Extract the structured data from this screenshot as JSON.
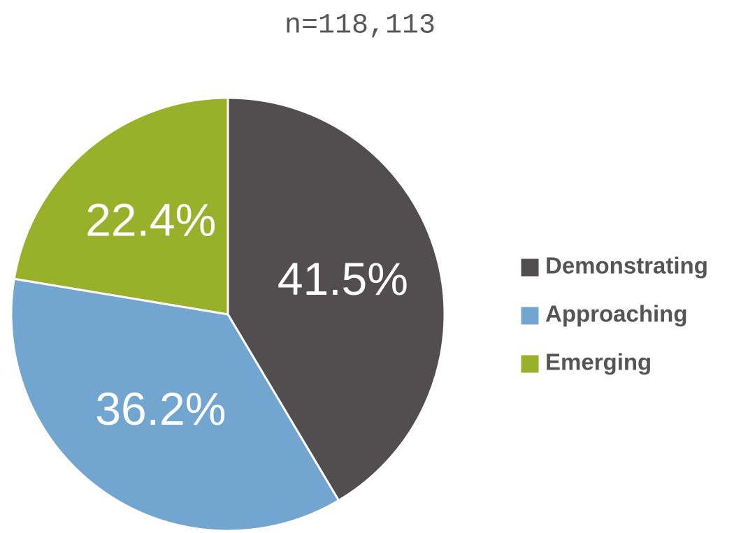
{
  "chart_data": {
    "type": "pie",
    "title": "n=118,113",
    "categories": [
      "Demonstrating",
      "Approaching",
      "Emerging"
    ],
    "values": [
      41.5,
      36.2,
      22.4
    ],
    "value_labels": [
      "41.5%",
      "36.2%",
      "22.4%"
    ],
    "colors": [
      "#524e4f",
      "#72a5cf",
      "#98b02a"
    ],
    "legend": "right"
  }
}
